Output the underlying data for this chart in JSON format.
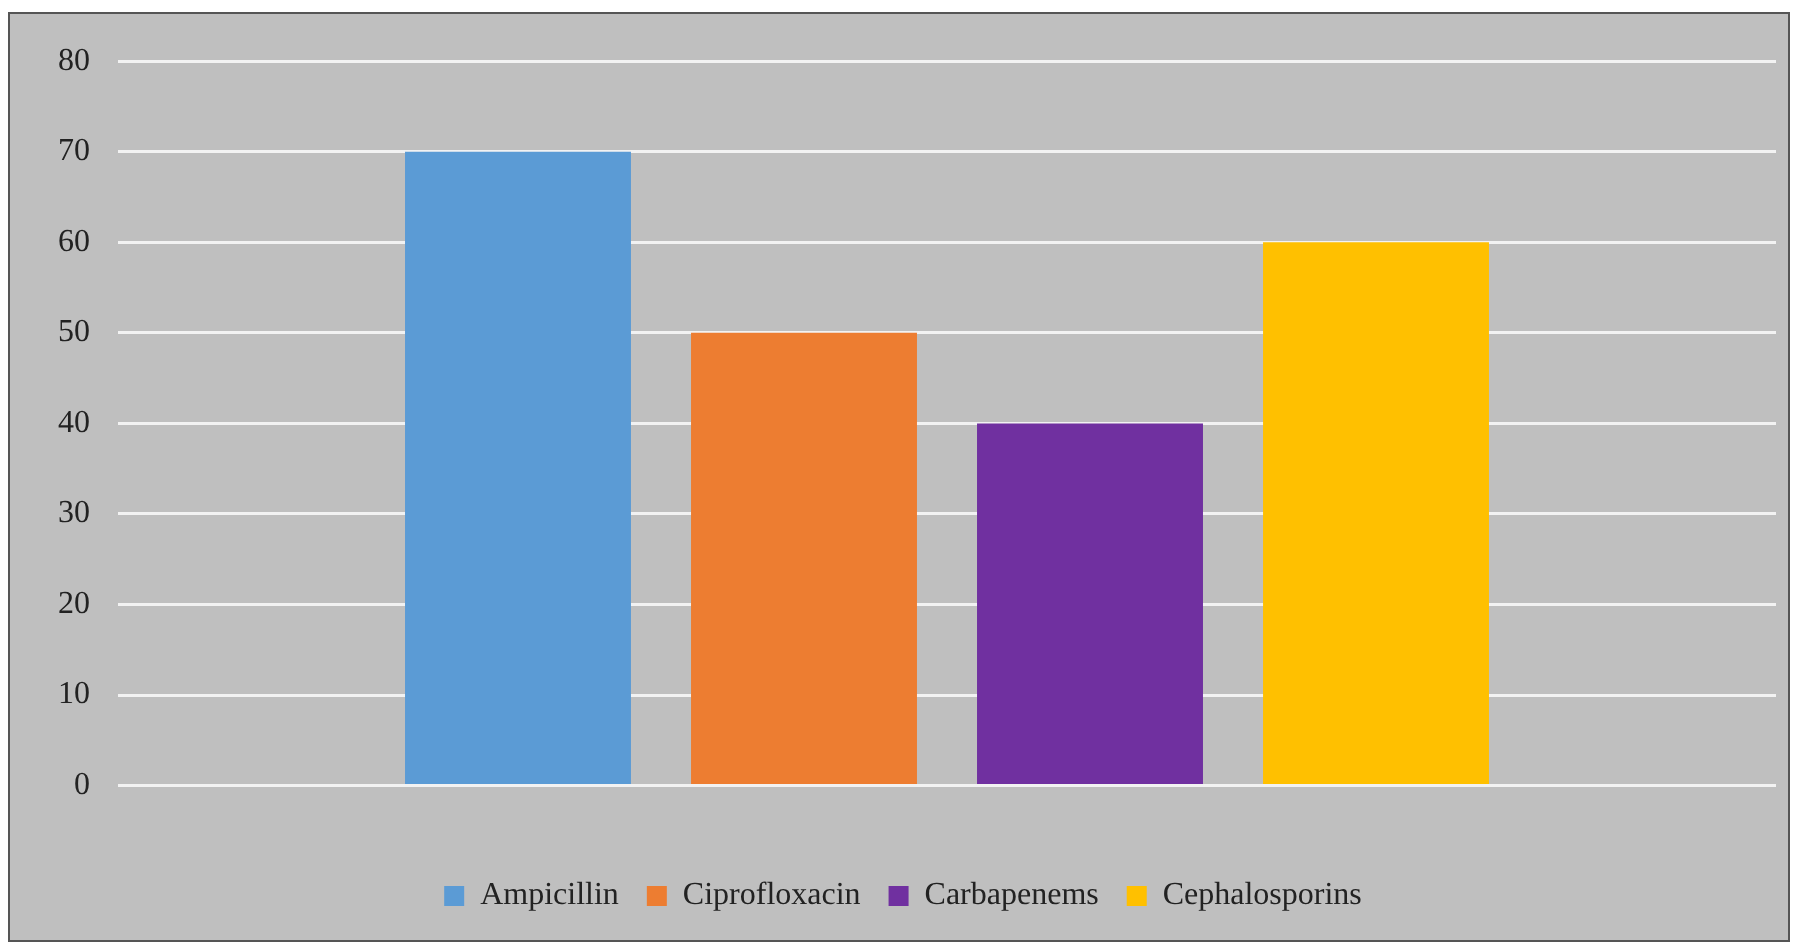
{
  "chart_data": {
    "type": "bar",
    "categories": [
      null
    ],
    "series": [
      {
        "name": "Ampicillin",
        "color": "#5b9bd5",
        "values": [
          70
        ]
      },
      {
        "name": "Ciprofloxacin",
        "color": "#ed7d31",
        "values": [
          50
        ]
      },
      {
        "name": "Carbapenems",
        "color": "#7030a0",
        "values": [
          40
        ]
      },
      {
        "name": "Cephalosporins",
        "color": "#ffc000",
        "values": [
          60
        ]
      }
    ],
    "ylim": [
      0,
      80
    ],
    "yticks": [
      0,
      10,
      20,
      30,
      40,
      50,
      60,
      70,
      80
    ],
    "grid": "y",
    "legend": "bottom"
  }
}
